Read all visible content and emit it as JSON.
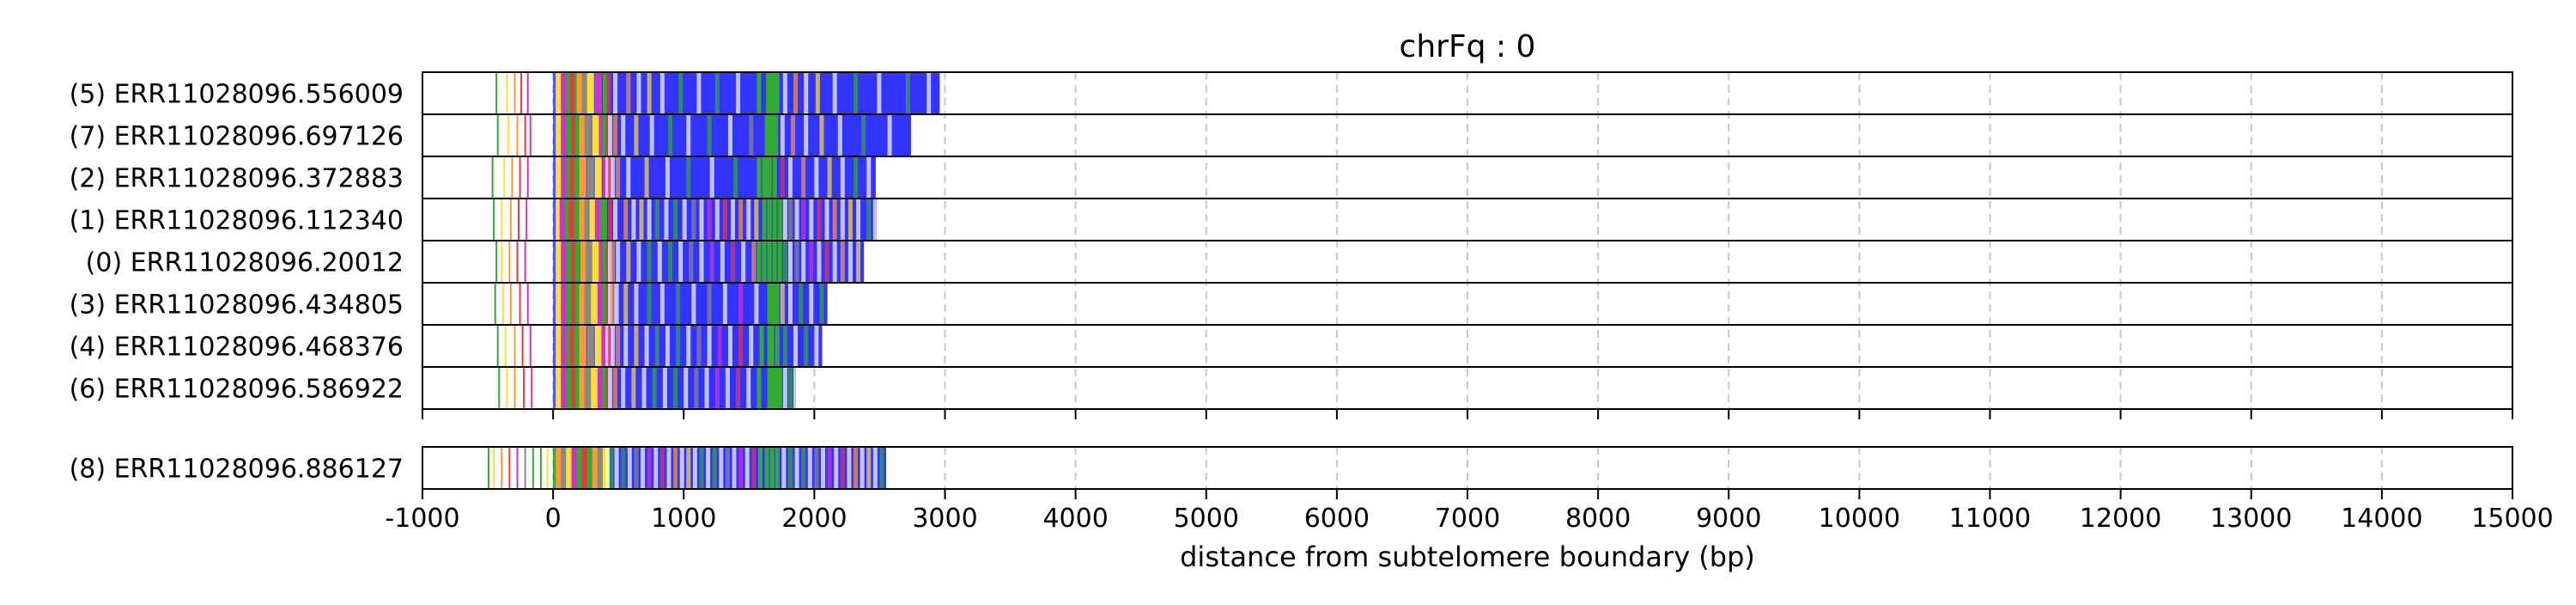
{
  "chart_data": {
    "type": "bar",
    "title": "chrFq : 0",
    "xlabel": "distance from subtelomere boundary (bp)",
    "ylabel": "",
    "xlim": [
      -1000,
      15000
    ],
    "x_ticks": [
      -1000,
      0,
      1000,
      2000,
      3000,
      4000,
      5000,
      6000,
      7000,
      8000,
      9000,
      10000,
      11000,
      12000,
      13000,
      14000,
      15000
    ],
    "grid": "vertical dashed at x ticks",
    "segment_colors": {
      "telomere_repeat": "#3333ff",
      "variant_green": "#33aa33",
      "variant_yellow": "#ffe033",
      "variant_orange": "#ff9933",
      "variant_red": "#ee3344",
      "variant_magenta": "#cc33cc",
      "variant_gray": "#888888"
    },
    "panels": [
      {
        "reads": [
          {
            "label": "(5) ERR11028096.556009",
            "start": -500,
            "end": 2960,
            "repeat_start": 370,
            "stripes": [
              -440,
              -360,
              -300,
              -250,
              -200,
              20,
              60,
              100,
              130,
              160,
              180,
              220,
              260,
              320,
              380,
              410,
              460,
              560,
              640,
              720,
              820,
              960,
              1100,
              1240,
              1400,
              1560,
              1630,
              1650,
              1670,
              1700,
              1760,
              1840,
              1920,
              2010,
              2140,
              2300,
              2480,
              2700,
              2860
            ]
          },
          {
            "label": "(7) ERR11028096.697126",
            "start": -480,
            "end": 2740,
            "repeat_start": 370,
            "stripes": [
              -430,
              -350,
              -280,
              -220,
              -180,
              20,
              60,
              100,
              140,
              170,
              200,
              240,
              300,
              350,
              380,
              400,
              420,
              460,
              520,
              620,
              740,
              880,
              1020,
              1180,
              1340,
              1500,
              1620,
              1640,
              1660,
              1690,
              1740,
              1820,
              1920,
              2040,
              2180,
              2360,
              2560
            ]
          },
          {
            "label": "(2) ERR11028096.372883",
            "start": -500,
            "end": 2470,
            "repeat_start": 370,
            "stripes": [
              -470,
              -380,
              -320,
              -260,
              -200,
              20,
              60,
              100,
              130,
              160,
              200,
              260,
              320,
              380,
              400,
              420,
              440,
              480,
              560,
              700,
              860,
              1020,
              1200,
              1380,
              1560,
              1600,
              1620,
              1640,
              1680,
              1740,
              1800,
              1900,
              2000,
              2100,
              2200,
              2300,
              2400
            ]
          },
          {
            "label": "(1) ERR11028096.112340",
            "start": -480,
            "end": 2480,
            "repeat_start": 370,
            "stripes": [
              -460,
              -400,
              -330,
              -270,
              -210,
              20,
              50,
              90,
              120,
              160,
              200,
              240,
              280,
              320,
              360,
              420,
              460,
              540,
              600,
              660,
              720,
              780,
              850,
              920,
              990,
              1060,
              1120,
              1180,
              1240,
              1300,
              1360,
              1420,
              1480,
              1540,
              1600,
              1640,
              1680,
              1720,
              1760,
              1800,
              1850,
              1900,
              1960,
              2020,
              2080,
              2140,
              2200,
              2260,
              2320,
              2400,
              2450
            ]
          },
          {
            "label": "(0) ERR11028096.20012",
            "start": -480,
            "end": 2380,
            "repeat_start": 370,
            "stripes": [
              -440,
              -400,
              -340,
              -280,
              -220,
              20,
              60,
              100,
              140,
              170,
              210,
              250,
              300,
              350,
              380,
              400,
              420,
              440,
              480,
              560,
              640,
              720,
              800,
              880,
              960,
              1040,
              1120,
              1200,
              1280,
              1360,
              1440,
              1520,
              1560,
              1600,
              1640,
              1680,
              1720,
              1760,
              1800,
              1850,
              1900,
              1960,
              2020,
              2080,
              2140,
              2200,
              2260,
              2320
            ]
          },
          {
            "label": "(3) ERR11028096.434805",
            "start": -480,
            "end": 2100,
            "repeat_start": 370,
            "stripes": [
              -450,
              -390,
              -330,
              -260,
              -200,
              20,
              60,
              100,
              140,
              170,
              200,
              240,
              290,
              340,
              380,
              400,
              420,
              440,
              470,
              540,
              620,
              720,
              820,
              940,
              1060,
              1180,
              1300,
              1420,
              1540,
              1640,
              1660,
              1680,
              1700,
              1740,
              1800,
              1880,
              1960,
              2040
            ]
          },
          {
            "label": "(4) ERR11028096.468376",
            "start": -450,
            "end": 2060,
            "repeat_start": 370,
            "stripes": [
              -430,
              -370,
              -300,
              -240,
              -180,
              20,
              60,
              100,
              130,
              160,
              200,
              260,
              320,
              370,
              400,
              420,
              440,
              480,
              540,
              620,
              700,
              780,
              860,
              940,
              1020,
              1100,
              1180,
              1260,
              1340,
              1420,
              1500,
              1580,
              1640,
              1660,
              1700,
              1760,
              1840,
              1920,
              2000
            ]
          },
          {
            "label": "(6) ERR11028096.586922",
            "start": -430,
            "end": 1860,
            "repeat_start": 370,
            "stripes": [
              -420,
              -360,
              -300,
              -230,
              -170,
              20,
              60,
              100,
              140,
              170,
              200,
              240,
              290,
              340,
              380,
              400,
              420,
              460,
              520,
              600,
              680,
              760,
              840,
              920,
              1000,
              1080,
              1160,
              1240,
              1320,
              1400,
              1480,
              1560,
              1640,
              1660,
              1690,
              1720,
              1760,
              1800,
              1840
            ]
          }
        ]
      },
      {
        "reads": [
          {
            "label": "(8) ERR11028096.886127",
            "start": -520,
            "end": 2550,
            "repeat_start": 400,
            "stripes": [
              -500,
              -460,
              -400,
              -340,
              -280,
              -220,
              -160,
              -100,
              -50,
              0,
              20,
              60,
              100,
              140,
              180,
              220,
              260,
              300,
              340,
              380,
              400,
              430,
              470,
              520,
              570,
              620,
              670,
              720,
              770,
              820,
              870,
              920,
              970,
              1020,
              1070,
              1120,
              1170,
              1220,
              1270,
              1320,
              1370,
              1420,
              1470,
              1520,
              1570,
              1620,
              1660,
              1700,
              1750,
              1800,
              1850,
              1900,
              1950,
              2000,
              2050,
              2100,
              2150,
              2200,
              2250,
              2300,
              2350,
              2400,
              2450,
              2500
            ]
          }
        ]
      }
    ]
  }
}
